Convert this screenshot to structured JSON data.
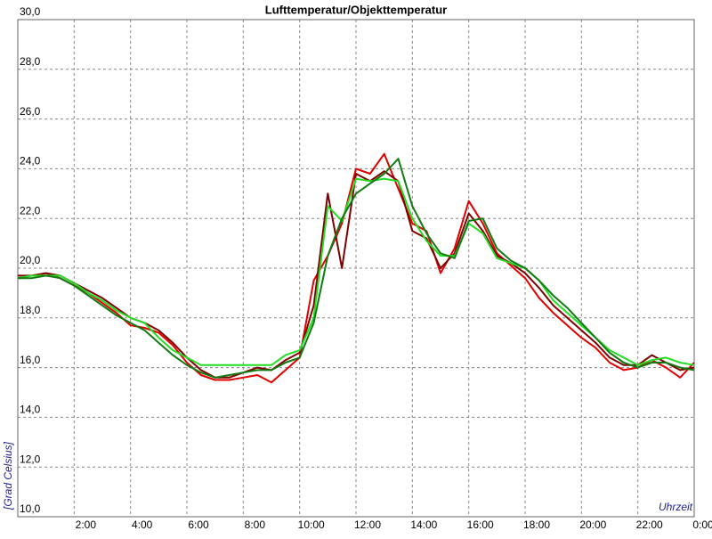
{
  "chart_data": {
    "type": "line",
    "title": "Lufttemperatur/Objekttemperatur",
    "y_label": "[Grad Celsius]",
    "x_label": "Uhrzeit",
    "grid": true,
    "xlim": [
      0,
      24
    ],
    "ylim": [
      10,
      30
    ],
    "xticks": [
      {
        "value": 2,
        "label": "2:00"
      },
      {
        "value": 4,
        "label": "4:00"
      },
      {
        "value": 6,
        "label": "6:00"
      },
      {
        "value": 8,
        "label": "8:00"
      },
      {
        "value": 10,
        "label": "10:00"
      },
      {
        "value": 12,
        "label": "12:00"
      },
      {
        "value": 14,
        "label": "14:00"
      },
      {
        "value": 16,
        "label": "16:00"
      },
      {
        "value": 18,
        "label": "18:00"
      },
      {
        "value": 20,
        "label": "20:00"
      },
      {
        "value": 22,
        "label": "22:00"
      },
      {
        "value": 24,
        "label": "0:00"
      }
    ],
    "yticks": [
      {
        "value": 10,
        "label": "10,0"
      },
      {
        "value": 12,
        "label": "12,0"
      },
      {
        "value": 14,
        "label": "14,0"
      },
      {
        "value": 16,
        "label": "16,0"
      },
      {
        "value": 18,
        "label": "18,0"
      },
      {
        "value": 20,
        "label": "20,0"
      },
      {
        "value": 22,
        "label": "22,0"
      },
      {
        "value": 24,
        "label": "24,0"
      },
      {
        "value": 26,
        "label": "26,0"
      },
      {
        "value": 28,
        "label": "28,0"
      },
      {
        "value": 30,
        "label": "30,0"
      }
    ],
    "x": [
      0,
      0.5,
      1,
      1.5,
      2,
      2.5,
      3,
      3.5,
      4,
      4.5,
      5,
      5.5,
      6,
      6.5,
      7,
      7.5,
      8,
      8.5,
      9,
      9.5,
      10,
      10.5,
      11,
      11.5,
      12,
      12.5,
      13,
      13.5,
      14,
      14.5,
      15,
      15.5,
      16,
      16.5,
      17,
      17.5,
      18,
      18.5,
      19,
      19.5,
      20,
      20.5,
      21,
      21.5,
      22,
      22.5,
      23,
      23.5,
      24
    ],
    "series": [
      {
        "color": "#e00000",
        "values": [
          19.6,
          19.7,
          19.8,
          19.6,
          19.3,
          19.0,
          18.6,
          18.2,
          17.7,
          17.6,
          17.4,
          16.9,
          16.2,
          15.7,
          15.5,
          15.5,
          15.6,
          15.7,
          15.4,
          15.9,
          16.4,
          19.5,
          20.5,
          21.8,
          24.0,
          23.8,
          24.6,
          23.2,
          21.8,
          21.5,
          19.8,
          20.8,
          22.7,
          21.8,
          20.6,
          20.1,
          19.6,
          18.8,
          18.2,
          17.7,
          17.2,
          16.8,
          16.2,
          15.9,
          16.0,
          16.3,
          16.0,
          15.6,
          16.2
        ]
      },
      {
        "color": "#800000",
        "values": [
          19.7,
          19.7,
          19.8,
          19.7,
          19.4,
          19.1,
          18.8,
          18.4,
          18.0,
          17.8,
          17.5,
          17.0,
          16.4,
          15.9,
          15.6,
          15.6,
          15.8,
          16.0,
          15.9,
          16.3,
          16.6,
          18.5,
          23.0,
          20.0,
          23.8,
          23.5,
          23.9,
          23.5,
          21.5,
          21.2,
          20.0,
          20.6,
          22.2,
          21.5,
          20.5,
          20.2,
          19.8,
          19.2,
          18.5,
          18.0,
          17.5,
          17.0,
          16.4,
          16.1,
          16.1,
          16.5,
          16.2,
          15.9,
          16.0
        ]
      },
      {
        "color": "#22dd22",
        "values": [
          19.6,
          19.7,
          19.7,
          19.7,
          19.4,
          19.0,
          18.7,
          18.3,
          18.0,
          17.8,
          17.2,
          16.7,
          16.4,
          16.1,
          16.1,
          16.1,
          16.1,
          16.1,
          16.1,
          16.5,
          16.7,
          18.0,
          22.5,
          21.9,
          23.6,
          23.5,
          23.6,
          23.5,
          22.0,
          21.1,
          20.5,
          20.5,
          21.8,
          21.4,
          20.4,
          20.2,
          20.0,
          19.5,
          18.7,
          18.2,
          17.7,
          17.2,
          16.7,
          16.4,
          16.1,
          16.3,
          16.4,
          16.2,
          16.1
        ]
      },
      {
        "color": "#117a11",
        "values": [
          19.6,
          19.6,
          19.7,
          19.6,
          19.3,
          18.9,
          18.5,
          18.1,
          17.8,
          17.5,
          17.0,
          16.5,
          16.1,
          15.8,
          15.6,
          15.7,
          15.8,
          15.9,
          15.9,
          16.2,
          16.4,
          17.8,
          20.5,
          22.0,
          23.0,
          23.4,
          23.8,
          24.4,
          22.5,
          21.4,
          20.6,
          20.4,
          21.9,
          22.0,
          20.8,
          20.3,
          20.0,
          19.5,
          18.9,
          18.4,
          17.8,
          17.2,
          16.6,
          16.2,
          16.0,
          16.2,
          16.2,
          16.0,
          15.9
        ]
      }
    ]
  }
}
